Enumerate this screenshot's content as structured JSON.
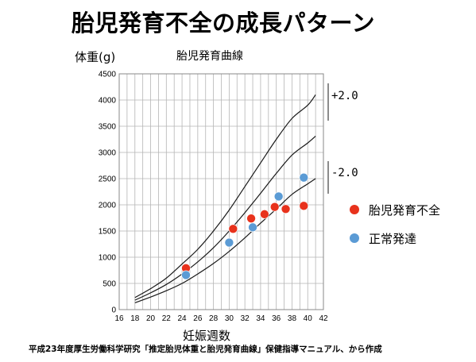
{
  "page": {
    "title": "胎児発育不全の成長パターン",
    "footnote": "平成23年度厚生労働科学研究「推定胎児体重と胎児発育曲線」保健指導マニュアル、から作成"
  },
  "chart_data": {
    "type": "scatter",
    "title": "胎児発育曲線",
    "ylabel": "体重(g)",
    "xlabel": "妊娠週数",
    "xlim": [
      16,
      42
    ],
    "ylim": [
      0,
      4500
    ],
    "x_ticks": [
      16,
      18,
      20,
      22,
      24,
      26,
      28,
      30,
      32,
      34,
      36,
      38,
      40,
      42
    ],
    "y_ticks": [
      0,
      500,
      1000,
      1500,
      2000,
      2500,
      3000,
      3500,
      4000,
      4500
    ],
    "grid": true,
    "reference_curves": [
      {
        "label": "+2.0",
        "points": [
          [
            18,
            230
          ],
          [
            20,
            400
          ],
          [
            22,
            600
          ],
          [
            24,
            870
          ],
          [
            26,
            1150
          ],
          [
            28,
            1500
          ],
          [
            30,
            1900
          ],
          [
            32,
            2350
          ],
          [
            34,
            2800
          ],
          [
            36,
            3250
          ],
          [
            38,
            3650
          ],
          [
            40,
            3900
          ],
          [
            41,
            4100
          ]
        ]
      },
      {
        "label": "",
        "points": [
          [
            18,
            180
          ],
          [
            20,
            320
          ],
          [
            22,
            480
          ],
          [
            24,
            680
          ],
          [
            26,
            910
          ],
          [
            28,
            1180
          ],
          [
            30,
            1500
          ],
          [
            32,
            1850
          ],
          [
            34,
            2220
          ],
          [
            36,
            2600
          ],
          [
            38,
            2950
          ],
          [
            40,
            3180
          ],
          [
            41,
            3310
          ]
        ]
      },
      {
        "label": "-2.0",
        "points": [
          [
            18,
            130
          ],
          [
            20,
            240
          ],
          [
            22,
            360
          ],
          [
            24,
            500
          ],
          [
            26,
            680
          ],
          [
            28,
            880
          ],
          [
            30,
            1110
          ],
          [
            32,
            1370
          ],
          [
            34,
            1650
          ],
          [
            36,
            1920
          ],
          [
            38,
            2200
          ],
          [
            40,
            2400
          ],
          [
            41,
            2500
          ]
        ]
      }
    ],
    "series": [
      {
        "name": "胎児発育不全",
        "color": "#e8321c",
        "points": [
          [
            24.5,
            790
          ],
          [
            30.5,
            1540
          ],
          [
            32.8,
            1740
          ],
          [
            34.5,
            1820
          ],
          [
            35.8,
            1960
          ],
          [
            37.2,
            1920
          ],
          [
            39.5,
            1980
          ]
        ]
      },
      {
        "name": "正常発達",
        "color": "#5b9bd5",
        "points": [
          [
            24.5,
            660
          ],
          [
            30,
            1280
          ],
          [
            33,
            1570
          ],
          [
            36.3,
            2160
          ],
          [
            39.5,
            2520
          ]
        ]
      }
    ]
  }
}
